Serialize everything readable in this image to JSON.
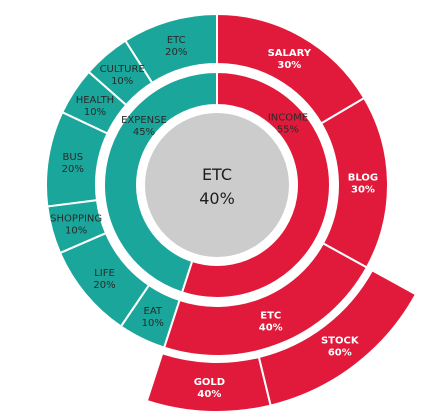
{
  "chart_data": {
    "type": "sunburst",
    "colors": {
      "expense": "#1aa69b",
      "income": "#e11a3b",
      "center": "#cccccc",
      "ring_gap": "#ffffff"
    },
    "center": {
      "label": "ETC",
      "value": "40%"
    },
    "inner_ring": [
      {
        "name": "EXPENSE",
        "value": "45%",
        "group": "expense"
      },
      {
        "name": "INCOME",
        "value": "55%",
        "group": "income"
      }
    ],
    "outer_ring": [
      {
        "name": "ETC",
        "value": "20%",
        "group": "expense"
      },
      {
        "name": "CULTURE",
        "value": "10%",
        "group": "expense"
      },
      {
        "name": "HEALTH",
        "value": "10%",
        "group": "expense"
      },
      {
        "name": "BUS",
        "value": "20%",
        "group": "expense"
      },
      {
        "name": "SHOPPING",
        "value": "10%",
        "group": "expense"
      },
      {
        "name": "LIFE",
        "value": "20%",
        "group": "expense"
      },
      {
        "name": "EAT",
        "value": "10%",
        "group": "expense"
      },
      {
        "name": "SALARY",
        "value": "30%",
        "group": "income"
      },
      {
        "name": "BLOG",
        "value": "30%",
        "group": "income"
      },
      {
        "name": "ETC",
        "value": "40%",
        "group": "income",
        "children": [
          {
            "name": "STOCK",
            "value": "60%"
          },
          {
            "name": "GOLD",
            "value": "40%"
          }
        ]
      }
    ]
  }
}
